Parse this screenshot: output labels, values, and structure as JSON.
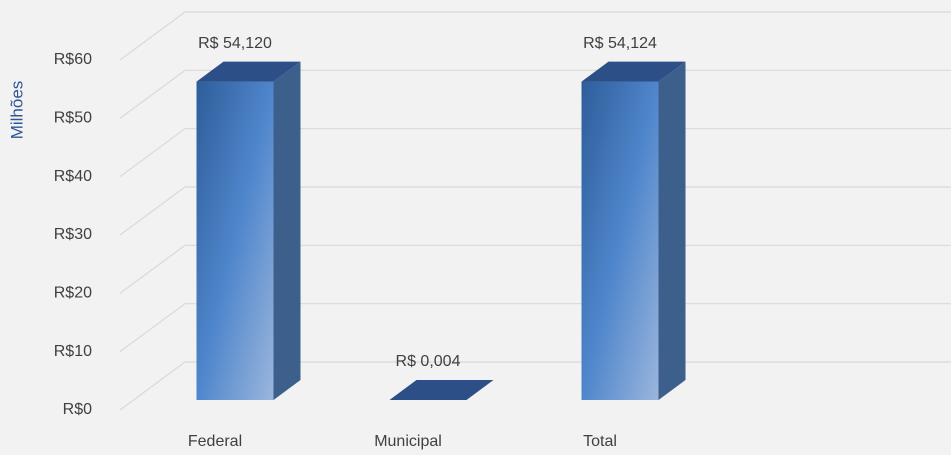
{
  "chart_data": {
    "type": "bar3d",
    "y_axis_label": "Milhões",
    "categories": [
      "Federal",
      "Municipal",
      "Total"
    ],
    "values": [
      54.12,
      0.004,
      54.124
    ],
    "value_labels": [
      "R$ 54,120",
      "R$ 0,004",
      "R$ 54,124"
    ],
    "color": "#4a7ebf",
    "ylim": [
      0,
      60
    ],
    "yticks": [
      {
        "value": 0,
        "label": "R$0"
      },
      {
        "value": 10,
        "label": "R$10"
      },
      {
        "value": 20,
        "label": "R$20"
      },
      {
        "value": 30,
        "label": "R$30"
      },
      {
        "value": 40,
        "label": "R$40"
      },
      {
        "value": 50,
        "label": "R$50"
      },
      {
        "value": 60,
        "label": "R$60"
      }
    ],
    "grid": true
  }
}
